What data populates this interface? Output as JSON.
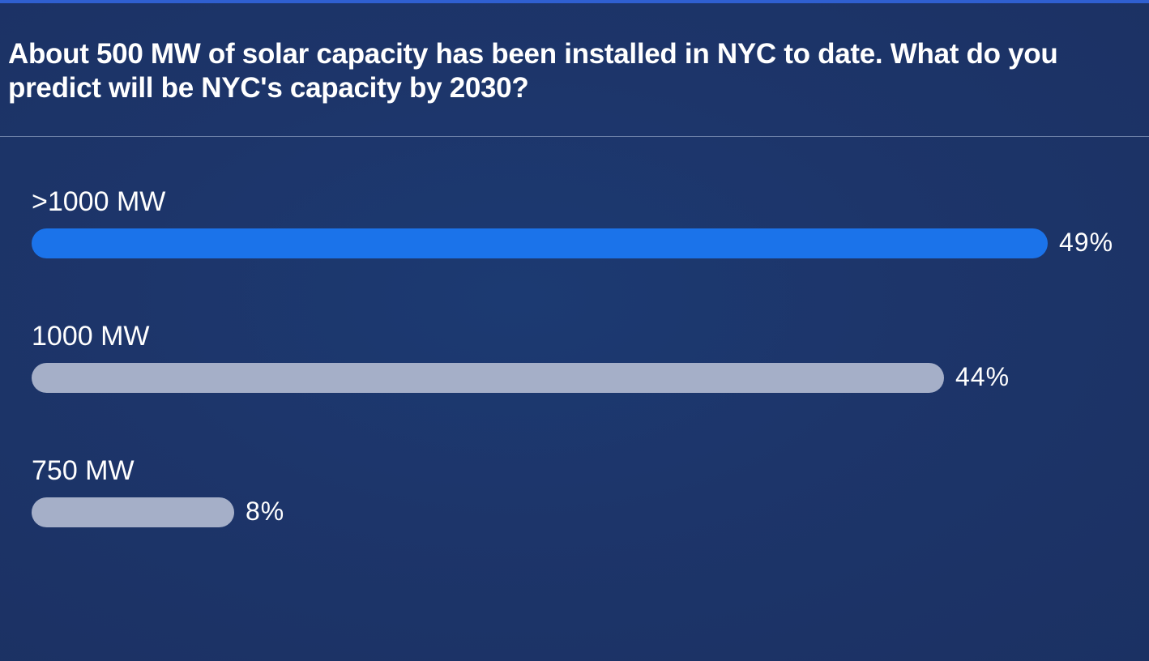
{
  "poll": {
    "question": "About 500 MW of solar capacity has been installed in NYC to date. What do you predict will be NYC's capacity by 2030?",
    "options": [
      {
        "label": ">1000 MW",
        "percent_text": "49%",
        "fraction": 0.49,
        "leading": true
      },
      {
        "label": "1000 MW",
        "percent_text": "44%",
        "fraction": 0.44,
        "leading": false
      },
      {
        "label": "750 MW",
        "percent_text": "8%",
        "fraction": 0.08,
        "leading": false
      }
    ]
  },
  "colors": {
    "background": "#1d356a",
    "leading_bar": "#1b73ea",
    "other_bar": "#a5afc8",
    "text": "#ffffff"
  }
}
